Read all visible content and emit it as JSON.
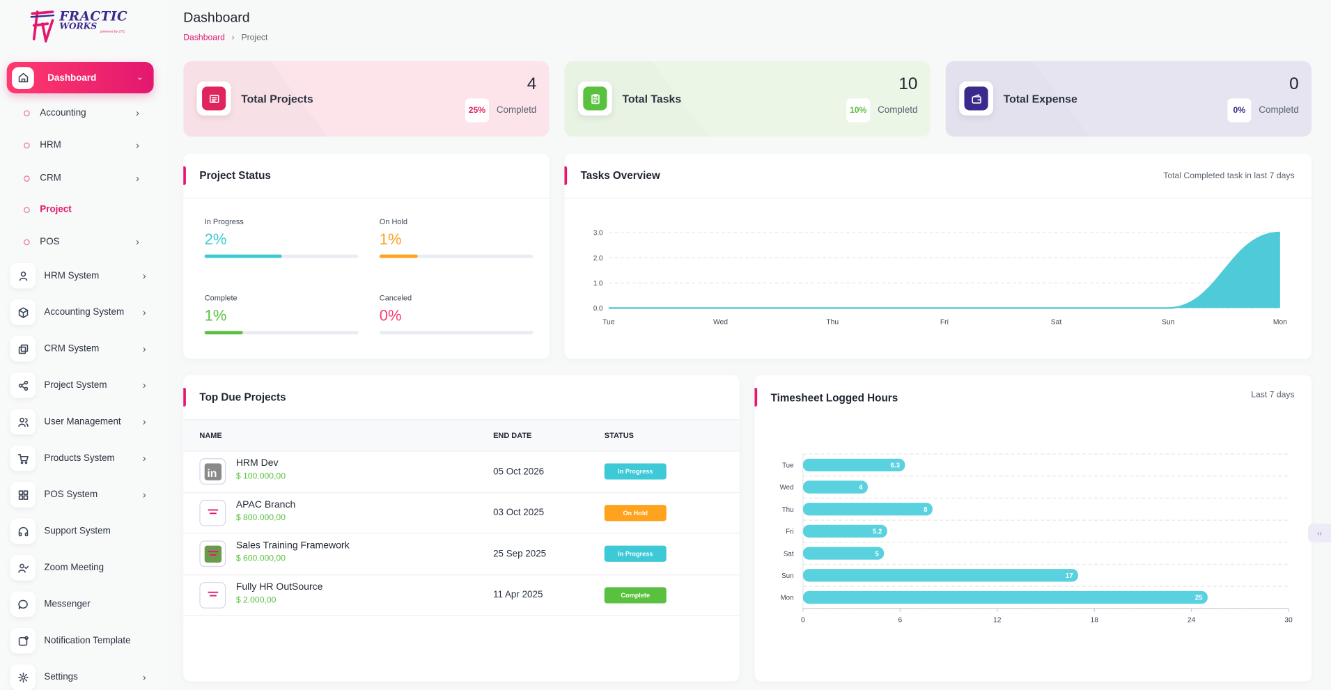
{
  "logo": {
    "line1": "FRACTIC",
    "line2": "WORKS",
    "sub": "powered by ZTC"
  },
  "header": {
    "title": "Dashboard",
    "breadcrumb": [
      "Dashboard",
      "Project"
    ]
  },
  "sidebar": {
    "active": {
      "label": "Dashboard",
      "icon": "home-icon"
    },
    "sub_items": [
      {
        "label": "Accounting",
        "has_children": true
      },
      {
        "label": "HRM",
        "has_children": true
      },
      {
        "label": "CRM",
        "has_children": true
      },
      {
        "label": "Project",
        "has_children": false,
        "active": true
      },
      {
        "label": "POS",
        "has_children": true
      }
    ],
    "items": [
      {
        "label": "HRM System",
        "icon": "user-icon",
        "has_children": true
      },
      {
        "label": "Accounting System",
        "icon": "box-icon",
        "has_children": true
      },
      {
        "label": "CRM System",
        "icon": "layers-icon",
        "has_children": true
      },
      {
        "label": "Project System",
        "icon": "share-icon",
        "has_children": true
      },
      {
        "label": "User Management",
        "icon": "users-icon",
        "has_children": true
      },
      {
        "label": "Products System",
        "icon": "cart-icon",
        "has_children": true
      },
      {
        "label": "POS System",
        "icon": "grid-icon",
        "has_children": true
      },
      {
        "label": "Support System",
        "icon": "headphones-icon",
        "has_children": false
      },
      {
        "label": "Zoom Meeting",
        "icon": "user-check-icon",
        "has_children": false
      },
      {
        "label": "Messenger",
        "icon": "message-icon",
        "has_children": false
      },
      {
        "label": "Notification Template",
        "icon": "bell-square-icon",
        "has_children": false
      },
      {
        "label": "Settings",
        "icon": "gear-icon",
        "has_children": true
      }
    ]
  },
  "stats": [
    {
      "name": "Total Projects",
      "value": "4",
      "percent": "25%",
      "completed_label": "Completd",
      "color": "#e0245e",
      "bg": "#fce4ea",
      "icon": "projects-icon"
    },
    {
      "name": "Total Tasks",
      "value": "10",
      "percent": "10%",
      "completed_label": "Completd",
      "color": "#59c13f",
      "bg": "#ebf6e7",
      "icon": "clipboard-icon"
    },
    {
      "name": "Total Expense",
      "value": "0",
      "percent": "0%",
      "completed_label": "Completd",
      "color": "#3a2a8c",
      "bg": "#e6e4f1",
      "icon": "wallet-icon"
    }
  ],
  "project_status": {
    "title": "Project Status",
    "items": [
      {
        "label": "In Progress",
        "value": "2%",
        "color": "#3ec9d6",
        "fill": 0.5
      },
      {
        "label": "On Hold",
        "value": "1%",
        "color": "#ffa21d",
        "fill": 0.25
      },
      {
        "label": "Complete",
        "value": "1%",
        "color": "#59c13f",
        "fill": 0.25
      },
      {
        "label": "Canceled",
        "value": "0%",
        "color": "#ff3a6e",
        "fill": 0
      }
    ]
  },
  "tasks_overview": {
    "title": "Tasks Overview",
    "subtitle": "Total Completed task in last 7 days",
    "chart_data": {
      "type": "area",
      "x": [
        "Tue",
        "Wed",
        "Thu",
        "Fri",
        "Sat",
        "Sun",
        "Mon"
      ],
      "series": [
        {
          "values": [
            0,
            0,
            0,
            0,
            0,
            0,
            3
          ]
        }
      ],
      "yticks": [
        "3.0",
        "2.0",
        "1.0",
        "0.0"
      ],
      "ylim": [
        0,
        3
      ],
      "color": "#4fcad8"
    }
  },
  "top_due": {
    "title": "Top Due Projects",
    "columns": [
      "NAME",
      "END DATE",
      "STATUS"
    ],
    "rows": [
      {
        "name": "HRM Dev",
        "amount": "$ 100.000,00",
        "end_date": "05 Oct 2026",
        "status": "In Progress",
        "status_color": "#3ec9d6"
      },
      {
        "name": "APAC Branch",
        "amount": "$ 800.000,00",
        "end_date": "03 Oct 2025",
        "status": "On Hold",
        "status_color": "#ffa21d"
      },
      {
        "name": "Sales Training Framework",
        "amount": "$ 600.000,00",
        "end_date": "25 Sep 2025",
        "status": "In Progress",
        "status_color": "#3ec9d6"
      },
      {
        "name": "Fully HR OutSource",
        "amount": "$ 2.000,00",
        "end_date": "11 Apr 2025",
        "status": "Complete",
        "status_color": "#59c13f"
      }
    ]
  },
  "timesheet": {
    "title": "Timesheet Logged Hours",
    "subtitle": "Last 7 days",
    "chart_data": {
      "type": "bar",
      "orientation": "horizontal",
      "categories": [
        "Tue",
        "Wed",
        "Thu",
        "Fri",
        "Sat",
        "Sun",
        "Mon"
      ],
      "values": [
        6.3,
        4,
        8,
        5.2,
        5,
        17,
        25
      ],
      "labels": [
        "6.3",
        "4",
        "8",
        "5.2",
        "5",
        "17",
        "25"
      ],
      "xticks": [
        "0",
        "6",
        "12",
        "18",
        "24",
        "30"
      ],
      "xlim": [
        0,
        30
      ],
      "color": "#5ad1de"
    }
  }
}
